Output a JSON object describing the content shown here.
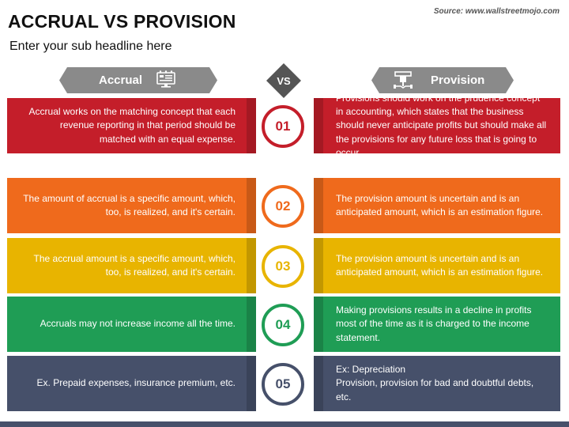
{
  "title": "ACCRUAL VS PROVISION",
  "subtitle": "Enter your sub headline here",
  "source": "Source: www.wallstreetmojo.com",
  "header": {
    "left_label": "Accrual",
    "vs_label": "VS",
    "right_label": "Provision",
    "left_icon": "computer-icon",
    "right_icon": "money-hand-icon"
  },
  "colors": {
    "header_gray": "#8a8a8a",
    "vs_gray": "#555555",
    "row1": "#c41e2a",
    "row2": "#ef6a1c",
    "row3": "#e8b400",
    "row4": "#1f9d55",
    "row5": "#46506a"
  },
  "rows": [
    {
      "number": "01",
      "accrual": "Accrual works on the matching concept that each revenue reporting in that period should be matched with an equal expense.",
      "provision": "Provisions should work on the prudence concept in accounting, which states that the business should never anticipate profits but should make all the provisions for any future loss that is going to occur."
    },
    {
      "number": "02",
      "accrual": "The amount of accrual is a specific amount, which, too, is realized, and it's certain.",
      "provision": "The provision amount is uncertain and is an anticipated amount, which is an estimation figure."
    },
    {
      "number": "03",
      "accrual": "The accrual amount is a specific amount, which, too, is realized, and it's certain.",
      "provision": "The provision amount is uncertain and is an anticipated amount, which is an estimation figure."
    },
    {
      "number": "04",
      "accrual": "Accruals may not increase income all the time.",
      "provision": "Making provisions results in a decline in profits most of the time as it is charged to the income statement."
    },
    {
      "number": "05",
      "accrual": "Ex. Prepaid expenses, insurance premium, etc.",
      "provision": "Ex: Depreciation\nProvision, provision for bad and doubtful debts, etc."
    }
  ]
}
